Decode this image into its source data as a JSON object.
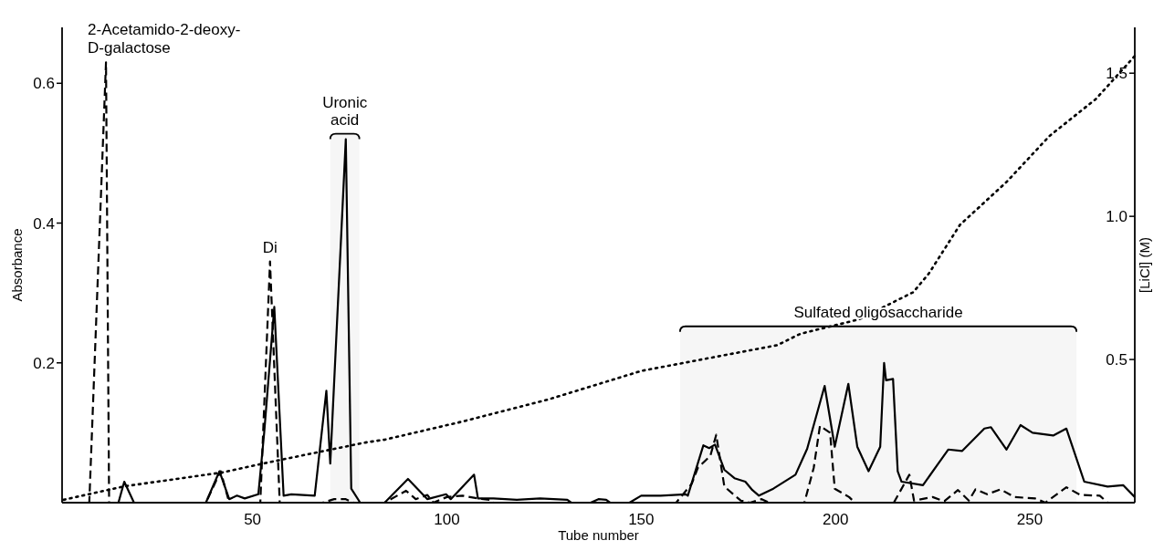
{
  "chart_data": {
    "type": "line",
    "xlabel": "Tube number",
    "ylabel": "Absorbance",
    "y2label": "[LiCl] (M)",
    "xlim": [
      1,
      277
    ],
    "xticks": [
      50,
      100,
      150,
      200,
      250
    ],
    "ylim": [
      0,
      0.68
    ],
    "yticks": [
      0.2,
      0.4,
      0.6
    ],
    "y2lim": [
      0,
      1.66
    ],
    "y2ticks": [
      0.5,
      {
        "value": 1,
        "label": "1.0"
      },
      1.5
    ],
    "grid": false,
    "series": [
      {
        "color": "#000000",
        "line_style": "solid",
        "x": [
          1,
          15.5,
          17,
          19.5,
          38,
          41.5,
          44,
          46,
          48,
          51.5,
          53,
          55.6,
          58,
          60,
          66,
          69,
          70,
          74,
          75.4,
          77.7,
          84,
          90,
          95,
          99.8,
          101,
          107,
          108,
          112,
          118,
          124,
          131,
          132,
          137,
          139,
          141,
          142,
          147,
          150,
          155,
          161.5,
          162,
          166,
          167.5,
          169,
          171.4,
          174,
          176.8,
          178.6,
          180.3,
          184,
          189.7,
          192.7,
          197.2,
          199.8,
          203.3,
          205.6,
          208.5,
          211.5,
          212.5,
          213,
          214.8,
          216,
          217,
          222.5,
          229,
          232.6,
          238.3,
          240,
          244,
          247.6,
          250.7,
          256,
          259.4,
          264,
          270,
          274,
          277
        ],
        "values": [
          0,
          0,
          0.03,
          0,
          0,
          0.045,
          0.005,
          0.01,
          0.006,
          0.012,
          0.1,
          0.28,
          0.01,
          0.012,
          0.01,
          0.16,
          0.056,
          0.52,
          0.02,
          0,
          0,
          0.034,
          0.005,
          0.012,
          0.005,
          0.04,
          0.006,
          0.006,
          0.004,
          0.006,
          0.004,
          0,
          0,
          0.005,
          0.004,
          0,
          0,
          0.01,
          0.01,
          0.012,
          0.01,
          0.082,
          0.078,
          0.083,
          0.047,
          0.035,
          0.03,
          0.018,
          0.01,
          0.02,
          0.04,
          0.077,
          0.167,
          0.08,
          0.17,
          0.08,
          0.045,
          0.08,
          0.2,
          0.175,
          0.177,
          0.045,
          0.03,
          0.025,
          0.076,
          0.074,
          0.106,
          0.108,
          0.076,
          0.111,
          0.1,
          0.096,
          0.106,
          0.03,
          0.023,
          0.025,
          0.008
        ]
      },
      {
        "color": "#000000",
        "line_style": "dashed",
        "x": [
          1,
          8,
          12.3,
          13.1,
          38,
          41.8,
          44,
          52,
          54.5,
          57,
          68,
          71,
          74,
          76,
          84,
          89.5,
          92,
          95,
          96.5,
          100,
          104,
          108,
          111,
          112,
          159,
          163,
          164.6,
          167.8,
          169.3,
          171.4,
          175.6,
          178,
          181,
          183,
          192,
          194.4,
          196,
          198.6,
          199.8,
          203.5,
          205,
          215,
          219,
          220.2,
          225,
          228,
          231.5,
          234.3,
          236,
          239,
          242.5,
          246,
          251.4,
          254,
          259.4,
          263,
          268,
          270,
          277
        ],
        "values": [
          0,
          0,
          0.63,
          0,
          0,
          0.045,
          0,
          0,
          0.345,
          0,
          0,
          0.005,
          0.005,
          0,
          0,
          0.017,
          0.005,
          0.011,
          0,
          0.008,
          0.01,
          0.006,
          0.004,
          0,
          0,
          0.027,
          0.05,
          0.067,
          0.097,
          0.023,
          0.003,
          0,
          0.005,
          0,
          0,
          0.05,
          0.11,
          0.1,
          0.02,
          0.008,
          0,
          0,
          0.04,
          0.003,
          0.008,
          0.002,
          0.018,
          0.003,
          0.019,
          0.012,
          0.019,
          0.008,
          0.006,
          0,
          0.022,
          0.011,
          0.01,
          0,
          0
        ]
      },
      {
        "color": "#000000",
        "line_style": "dotted",
        "axis": "y2",
        "x": [
          1.4,
          17,
          42,
          56,
          79,
          84,
          103,
          126,
          150,
          185,
          191,
          206,
          220,
          224,
          232,
          244,
          255,
          267,
          277
        ],
        "values": [
          0.01,
          0.057,
          0.105,
          0.146,
          0.21,
          0.22,
          0.28,
          0.36,
          0.46,
          0.55,
          0.59,
          0.64,
          0.735,
          0.8,
          0.97,
          1.12,
          1.28,
          1.41,
          1.56
        ]
      }
    ],
    "annotations": [
      {
        "text": "2-Acetamido-2-deoxy-\nD-galactose",
        "x": 12.3,
        "y": 0.63
      },
      {
        "text": "Di",
        "x": 54.5,
        "y": 0.345
      }
    ],
    "bands": [
      {
        "axis": "x",
        "from": 70,
        "to": 77.5,
        "label": "Uronic\nacid"
      },
      {
        "axis": "x",
        "from": 160,
        "to": 262,
        "label": "Sulfated oligosaccharide"
      }
    ]
  }
}
